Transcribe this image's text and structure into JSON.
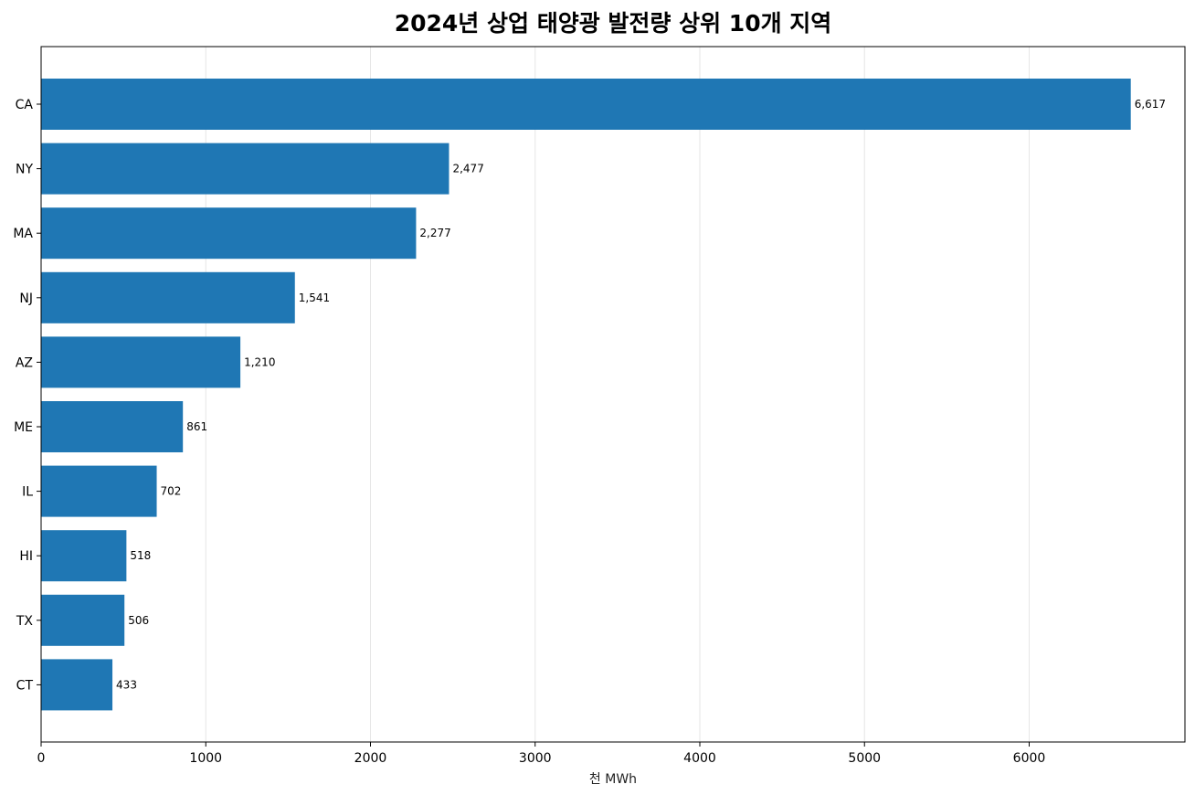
{
  "chart_data": {
    "type": "bar",
    "orientation": "horizontal",
    "title": "2024년 상업 태양광 발전량 상위 10개 지역",
    "xlabel": "천 MWh",
    "ylabel": "",
    "categories": [
      "CA",
      "NY",
      "MA",
      "NJ",
      "AZ",
      "ME",
      "IL",
      "HI",
      "TX",
      "CT"
    ],
    "values": [
      6617,
      2477,
      2277,
      1541,
      1210,
      861,
      702,
      518,
      506,
      433
    ],
    "value_labels": [
      "6,617",
      "2,477",
      "2,277",
      "1,541",
      "1,210",
      "861",
      "702",
      "518",
      "506",
      "433"
    ],
    "xlim": [
      0,
      6946
    ],
    "xticks": [
      0,
      1000,
      2000,
      3000,
      4000,
      5000,
      6000
    ],
    "xtick_labels": [
      "0",
      "1000",
      "2000",
      "3000",
      "4000",
      "5000",
      "6000"
    ],
    "grid": "x-axis vertical",
    "legend": "none",
    "colors": {
      "bar": "#1f77b4",
      "grid": "#e6e6e6",
      "axis": "#000000"
    }
  }
}
